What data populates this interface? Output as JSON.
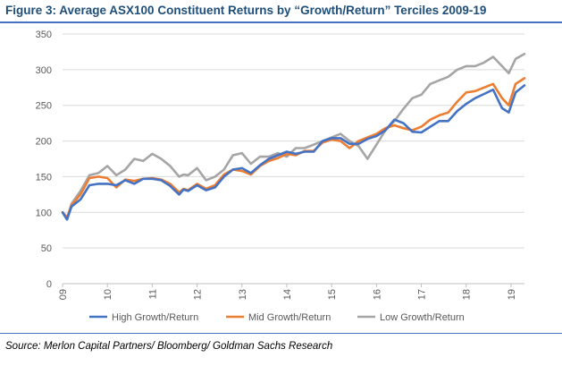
{
  "header": {
    "title": "Figure 3: Average ASX100 Constituent Returns by “Growth/Return” Terciles 2009-19"
  },
  "footer": {
    "source": "Source: Merlon Capital Partners/ Bloomberg/ Goldman Sachs Research"
  },
  "chart_data": {
    "type": "line",
    "title": "",
    "xlabel": "",
    "ylabel": "",
    "ylim": [
      0,
      350
    ],
    "xlim": [
      2009,
      2019.3
    ],
    "grid": "horizontal",
    "legend_position": "bottom",
    "y_ticks": [
      "0",
      "50",
      "100",
      "150",
      "200",
      "250",
      "300",
      "350"
    ],
    "x_ticks": [
      {
        "x": 2009,
        "label": "09"
      },
      {
        "x": 2010,
        "label": "10"
      },
      {
        "x": 2011,
        "label": "11"
      },
      {
        "x": 2012,
        "label": "12"
      },
      {
        "x": 2013,
        "label": "13"
      },
      {
        "x": 2014,
        "label": "14"
      },
      {
        "x": 2015,
        "label": "15"
      },
      {
        "x": 2016,
        "label": "16"
      },
      {
        "x": 2017,
        "label": "17"
      },
      {
        "x": 2018,
        "label": "18"
      },
      {
        "x": 2019,
        "label": "19"
      }
    ],
    "x": [
      2009.0,
      2009.1,
      2009.2,
      2009.4,
      2009.6,
      2009.8,
      2010.0,
      2010.2,
      2010.4,
      2010.6,
      2010.8,
      2011.0,
      2011.2,
      2011.4,
      2011.6,
      2011.7,
      2011.8,
      2012.0,
      2012.2,
      2012.4,
      2012.6,
      2012.8,
      2013.0,
      2013.2,
      2013.4,
      2013.6,
      2013.8,
      2014.0,
      2014.2,
      2014.4,
      2014.6,
      2014.8,
      2015.0,
      2015.2,
      2015.4,
      2015.6,
      2015.8,
      2016.0,
      2016.2,
      2016.4,
      2016.6,
      2016.8,
      2017.0,
      2017.2,
      2017.4,
      2017.6,
      2017.8,
      2018.0,
      2018.2,
      2018.4,
      2018.6,
      2018.8,
      2018.95,
      2019.1,
      2019.3
    ],
    "series": [
      {
        "name": "High Growth/Return",
        "color": "#4472c4",
        "values": [
          100,
          90,
          108,
          118,
          138,
          140,
          140,
          138,
          145,
          140,
          147,
          147,
          145,
          137,
          125,
          132,
          130,
          138,
          131,
          135,
          150,
          160,
          162,
          155,
          166,
          175,
          180,
          185,
          182,
          185,
          185,
          200,
          204,
          204,
          196,
          196,
          203,
          207,
          215,
          230,
          225,
          213,
          212,
          220,
          228,
          228,
          242,
          252,
          260,
          266,
          272,
          246,
          240,
          268,
          278
        ]
      },
      {
        "name": "Mid Growth/Return",
        "color": "#ed7d31",
        "values": [
          100,
          93,
          110,
          125,
          148,
          150,
          148,
          135,
          146,
          144,
          147,
          148,
          146,
          140,
          128,
          133,
          131,
          140,
          133,
          138,
          153,
          160,
          158,
          153,
          165,
          172,
          176,
          182,
          180,
          186,
          186,
          198,
          202,
          200,
          190,
          200,
          205,
          210,
          218,
          222,
          218,
          215,
          220,
          230,
          236,
          240,
          255,
          268,
          270,
          275,
          280,
          260,
          250,
          280,
          288
        ]
      },
      {
        "name": "Low Growth/Return",
        "color": "#a5a5a5",
        "values": [
          100,
          90,
          112,
          130,
          152,
          155,
          165,
          152,
          160,
          175,
          172,
          182,
          175,
          165,
          150,
          153,
          152,
          162,
          145,
          150,
          160,
          180,
          183,
          168,
          178,
          178,
          183,
          178,
          190,
          190,
          195,
          200,
          205,
          210,
          200,
          193,
          175,
          195,
          215,
          228,
          245,
          260,
          265,
          280,
          285,
          290,
          300,
          305,
          305,
          310,
          318,
          305,
          295,
          315,
          322
        ]
      }
    ]
  }
}
